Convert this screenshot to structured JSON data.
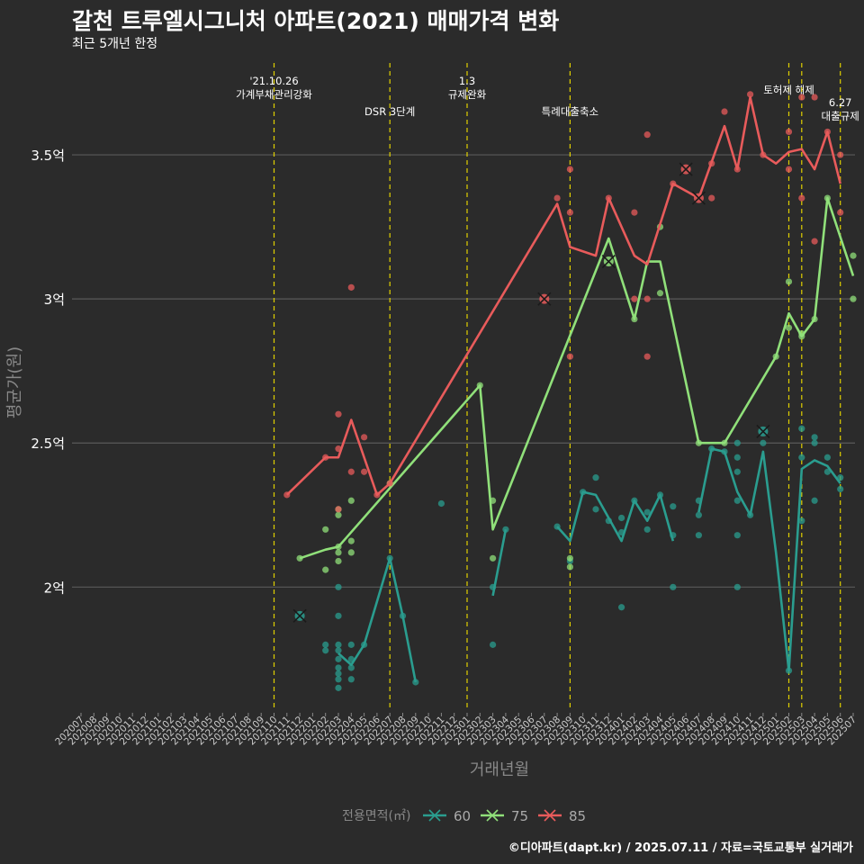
{
  "title": "갈천 트루엘시그니처 아파트(2021) 매매가격 변화",
  "subtitle": "최근 5개년 한정",
  "caption": "©디아파트(dapt.kr) / 2025.07.11 / 자료=국토교통부 실거래가",
  "colors": {
    "background": "#2b2b2b",
    "grid": "#5a5a5a",
    "event_line": "#e0d000",
    "s60": "#2a9d8f",
    "s75": "#90e07a",
    "s85": "#e85b5b"
  },
  "chart_data": {
    "type": "line",
    "xlabel": "거래년월",
    "ylabel": "평균가(원)",
    "ylim": [
      1.57,
      3.85
    ],
    "yticks": [
      {
        "v": 2.0,
        "label": "2억"
      },
      {
        "v": 2.5,
        "label": "2.5억"
      },
      {
        "v": 3.0,
        "label": "3억"
      },
      {
        "v": 3.5,
        "label": "3.5억"
      }
    ],
    "x_categories": [
      "202007",
      "202008",
      "202009",
      "202010",
      "202011",
      "202012",
      "202101",
      "202102",
      "202103",
      "202104",
      "202105",
      "202106",
      "202107",
      "202108",
      "202109",
      "202110",
      "202111",
      "202112",
      "202201",
      "202202",
      "202203",
      "202204",
      "202205",
      "202206",
      "202207",
      "202208",
      "202209",
      "202210",
      "202211",
      "202212",
      "202301",
      "202302",
      "202303",
      "202304",
      "202305",
      "202306",
      "202307",
      "202308",
      "202309",
      "202310",
      "202311",
      "202312",
      "202401",
      "202402",
      "202403",
      "202404",
      "202405",
      "202406",
      "202407",
      "202408",
      "202409",
      "202410",
      "202411",
      "202412",
      "202501",
      "202502",
      "202503",
      "202504",
      "202505",
      "202506",
      "202507"
    ],
    "legend_title": "전용면적(㎡)",
    "events": [
      {
        "x": "202110",
        "label": [
          "'21.10.26",
          "가계부채관리강화"
        ],
        "row": 0
      },
      {
        "x": "202207",
        "label": [
          "DSR 3단계"
        ],
        "row": 2
      },
      {
        "x": "202301",
        "label": [
          "1.3",
          "규제완화"
        ],
        "row": 0
      },
      {
        "x": "202309",
        "label": [
          "특례대출축소"
        ],
        "row": 2
      },
      {
        "x": "202502",
        "label": [
          "토허제 해제"
        ],
        "row": 1
      },
      {
        "x": "202503",
        "label": [],
        "row": 1
      },
      {
        "x": "202506",
        "label": [
          "6.27",
          "대출규제"
        ],
        "row": 3
      }
    ],
    "series": [
      {
        "name": "60",
        "color_key": "s60",
        "line": [
          [
            "202203",
            1.77
          ],
          [
            "202204",
            1.73
          ],
          [
            "202205",
            1.8
          ],
          [
            "202207",
            2.1
          ],
          [
            "202208",
            1.9
          ],
          [
            "202209",
            1.67
          ],
          null,
          [
            "202303",
            1.97
          ],
          [
            "202304",
            2.2
          ],
          null,
          [
            "202308",
            2.21
          ],
          [
            "202309",
            2.16
          ],
          [
            "202310",
            2.33
          ],
          [
            "202311",
            2.32
          ],
          [
            "202312",
            2.24
          ],
          [
            "202401",
            2.16
          ],
          [
            "202402",
            2.3
          ],
          [
            "202403",
            2.23
          ],
          [
            "202404",
            2.32
          ],
          [
            "202405",
            2.16
          ],
          null,
          [
            "202407",
            2.26
          ],
          [
            "202408",
            2.48
          ],
          [
            "202409",
            2.47
          ],
          [
            "202410",
            2.33
          ],
          [
            "202411",
            2.25
          ],
          [
            "202412",
            2.47
          ],
          [
            "202501",
            2.12
          ],
          [
            "202502",
            1.71
          ],
          [
            "202503",
            2.41
          ],
          [
            "202504",
            2.44
          ],
          [
            "202505",
            2.42
          ],
          [
            "202506",
            2.36
          ]
        ],
        "points": [
          [
            "202202",
            1.78
          ],
          [
            "202202",
            1.8
          ],
          [
            "202203",
            1.65
          ],
          [
            "202203",
            1.68
          ],
          [
            "202203",
            1.7
          ],
          [
            "202203",
            1.72
          ],
          [
            "202203",
            1.75
          ],
          [
            "202203",
            1.78
          ],
          [
            "202203",
            1.8
          ],
          [
            "202203",
            1.9
          ],
          [
            "202203",
            2.0
          ],
          [
            "202204",
            1.68
          ],
          [
            "202204",
            1.72
          ],
          [
            "202204",
            1.75
          ],
          [
            "202204",
            1.8
          ],
          [
            "202205",
            1.8
          ],
          [
            "202207",
            2.1
          ],
          [
            "202208",
            1.9
          ],
          [
            "202209",
            1.67
          ],
          [
            "202211",
            2.29
          ],
          [
            "202303",
            1.8
          ],
          [
            "202303",
            2.0
          ],
          [
            "202304",
            2.2
          ],
          [
            "202308",
            2.21
          ],
          [
            "202309",
            2.09
          ],
          [
            "202310",
            2.33
          ],
          [
            "202311",
            2.27
          ],
          [
            "202311",
            2.38
          ],
          [
            "202312",
            2.23
          ],
          [
            "202401",
            1.93
          ],
          [
            "202401",
            2.19
          ],
          [
            "202401",
            2.24
          ],
          [
            "202402",
            2.3
          ],
          [
            "202403",
            2.2
          ],
          [
            "202403",
            2.26
          ],
          [
            "202404",
            2.32
          ],
          [
            "202405",
            2.0
          ],
          [
            "202405",
            2.18
          ],
          [
            "202405",
            2.28
          ],
          [
            "202407",
            2.18
          ],
          [
            "202407",
            2.25
          ],
          [
            "202407",
            2.3
          ],
          [
            "202408",
            2.48
          ],
          [
            "202409",
            2.47
          ],
          [
            "202410",
            2.0
          ],
          [
            "202410",
            2.18
          ],
          [
            "202410",
            2.3
          ],
          [
            "202410",
            2.4
          ],
          [
            "202410",
            2.45
          ],
          [
            "202410",
            2.5
          ],
          [
            "202411",
            2.25
          ],
          [
            "202412",
            2.5
          ],
          [
            "202502",
            1.71
          ],
          [
            "202503",
            2.23
          ],
          [
            "202503",
            2.45
          ],
          [
            "202503",
            2.55
          ],
          [
            "202504",
            2.3
          ],
          [
            "202504",
            2.5
          ],
          [
            "202504",
            2.52
          ],
          [
            "202505",
            2.4
          ],
          [
            "202505",
            2.45
          ],
          [
            "202506",
            2.34
          ],
          [
            "202506",
            2.38
          ]
        ],
        "crosses": [
          [
            "202112",
            1.9
          ],
          [
            "202412",
            2.54
          ]
        ]
      },
      {
        "name": "75",
        "color_key": "s75",
        "line": [
          [
            "202112",
            2.1
          ],
          [
            "202202",
            2.13
          ],
          [
            "202203",
            2.14
          ],
          [
            "202302",
            2.7
          ],
          [
            "202303",
            2.2
          ],
          [
            "202312",
            3.21
          ],
          [
            "202402",
            2.93
          ],
          [
            "202403",
            3.13
          ],
          [
            "202404",
            3.13
          ],
          [
            "202407",
            2.5
          ],
          [
            "202409",
            2.5
          ],
          [
            "202501",
            2.8
          ],
          [
            "202502",
            2.95
          ],
          [
            "202503",
            2.87
          ],
          [
            "202504",
            2.93
          ],
          [
            "202505",
            3.35
          ],
          [
            "202507",
            3.08
          ]
        ],
        "points": [
          [
            "202112",
            2.1
          ],
          [
            "202202",
            2.06
          ],
          [
            "202202",
            2.2
          ],
          [
            "202203",
            2.09
          ],
          [
            "202203",
            2.12
          ],
          [
            "202203",
            2.14
          ],
          [
            "202203",
            2.25
          ],
          [
            "202203",
            2.27
          ],
          [
            "202204",
            2.12
          ],
          [
            "202204",
            2.16
          ],
          [
            "202204",
            2.3
          ],
          [
            "202207",
            2.36
          ],
          [
            "202302",
            2.7
          ],
          [
            "202303",
            2.1
          ],
          [
            "202303",
            2.3
          ],
          [
            "202309",
            2.07
          ],
          [
            "202309",
            2.1
          ],
          [
            "202402",
            2.93
          ],
          [
            "202404",
            3.25
          ],
          [
            "202404",
            3.02
          ],
          [
            "202407",
            2.5
          ],
          [
            "202409",
            2.5
          ],
          [
            "202501",
            2.8
          ],
          [
            "202502",
            3.06
          ],
          [
            "202502",
            2.9
          ],
          [
            "202503",
            2.87
          ],
          [
            "202503",
            2.88
          ],
          [
            "202504",
            2.93
          ],
          [
            "202505",
            3.35
          ],
          [
            "202507",
            3.15
          ],
          [
            "202507",
            3.0
          ]
        ],
        "crosses": [
          [
            "202312",
            3.13
          ]
        ]
      },
      {
        "name": "85",
        "color_key": "s85",
        "line": [
          [
            "202111",
            2.32
          ],
          [
            "202202",
            2.45
          ],
          [
            "202203",
            2.45
          ],
          [
            "202204",
            2.58
          ],
          [
            "202206",
            2.32
          ],
          [
            "202207",
            2.36
          ],
          [
            "202308",
            3.33
          ],
          [
            "202309",
            3.18
          ],
          [
            "202311",
            3.15
          ],
          [
            "202312",
            3.35
          ],
          [
            "202402",
            3.15
          ],
          [
            "202403",
            3.12
          ],
          [
            "202405",
            3.4
          ],
          [
            "202407",
            3.35
          ],
          [
            "202409",
            3.6
          ],
          [
            "202410",
            3.45
          ],
          [
            "202411",
            3.7
          ],
          [
            "202412",
            3.5
          ],
          [
            "202501",
            3.47
          ],
          [
            "202502",
            3.51
          ],
          [
            "202503",
            3.52
          ],
          [
            "202504",
            3.45
          ],
          [
            "202505",
            3.58
          ],
          [
            "202506",
            3.4
          ]
        ],
        "points": [
          [
            "202111",
            2.32
          ],
          [
            "202202",
            2.45
          ],
          [
            "202203",
            2.6
          ],
          [
            "202203",
            2.48
          ],
          [
            "202203",
            2.27
          ],
          [
            "202204",
            3.04
          ],
          [
            "202204",
            2.4
          ],
          [
            "202205",
            2.52
          ],
          [
            "202205",
            2.4
          ],
          [
            "202206",
            2.32
          ],
          [
            "202207",
            2.36
          ],
          [
            "202308",
            3.35
          ],
          [
            "202309",
            3.45
          ],
          [
            "202309",
            3.3
          ],
          [
            "202309",
            2.8
          ],
          [
            "202312",
            3.35
          ],
          [
            "202402",
            3.3
          ],
          [
            "202402",
            3.0
          ],
          [
            "202403",
            3.57
          ],
          [
            "202403",
            3.0
          ],
          [
            "202403",
            2.8
          ],
          [
            "202405",
            3.4
          ],
          [
            "202408",
            3.47
          ],
          [
            "202408",
            3.35
          ],
          [
            "202409",
            3.65
          ],
          [
            "202410",
            3.45
          ],
          [
            "202411",
            3.71
          ],
          [
            "202412",
            3.5
          ],
          [
            "202502",
            3.58
          ],
          [
            "202502",
            3.45
          ],
          [
            "202503",
            3.7
          ],
          [
            "202503",
            3.35
          ],
          [
            "202504",
            3.7
          ],
          [
            "202504",
            3.2
          ],
          [
            "202505",
            3.58
          ],
          [
            "202506",
            3.5
          ],
          [
            "202506",
            3.3
          ]
        ],
        "crosses": [
          [
            "202307",
            3.0
          ],
          [
            "202406",
            3.45
          ],
          [
            "202407",
            3.35
          ]
        ]
      }
    ]
  }
}
